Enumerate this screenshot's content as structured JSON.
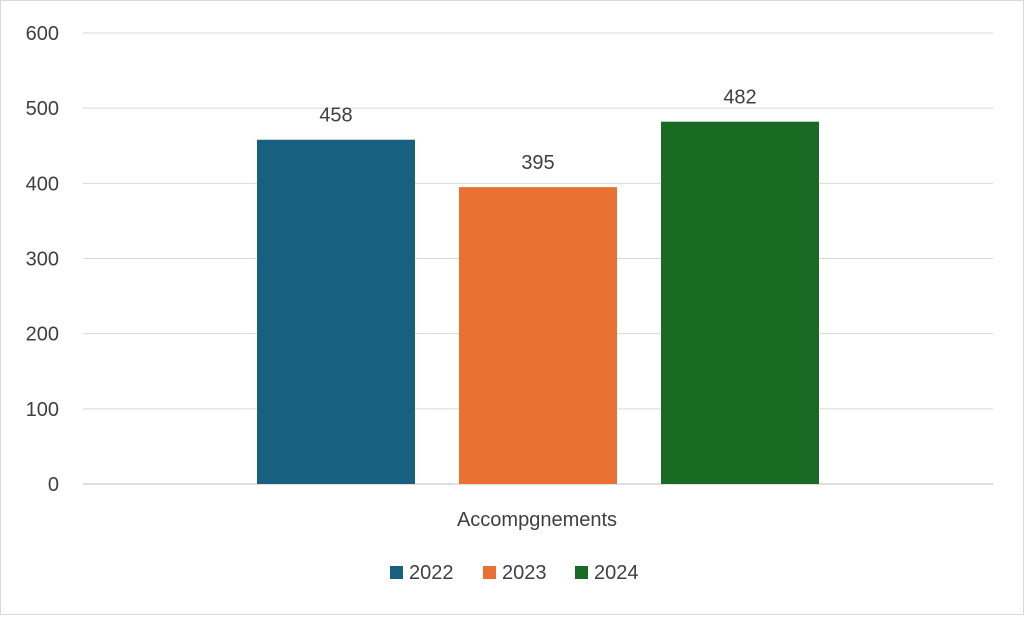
{
  "chart_data": {
    "type": "bar",
    "categories": [
      "Accompgnements"
    ],
    "series": [
      {
        "name": "2022",
        "values": [
          458
        ],
        "color": "#17607F"
      },
      {
        "name": "2023",
        "values": [
          395
        ],
        "color": "#E97132"
      },
      {
        "name": "2024",
        "values": [
          482
        ],
        "color": "#196B24"
      }
    ],
    "yticks": [
      "0",
      "100",
      "200",
      "300",
      "400",
      "500",
      "600"
    ],
    "ylim": [
      0,
      600
    ],
    "data_labels": [
      "458",
      "395",
      "482"
    ],
    "grid": true,
    "legend_position": "bottom"
  }
}
